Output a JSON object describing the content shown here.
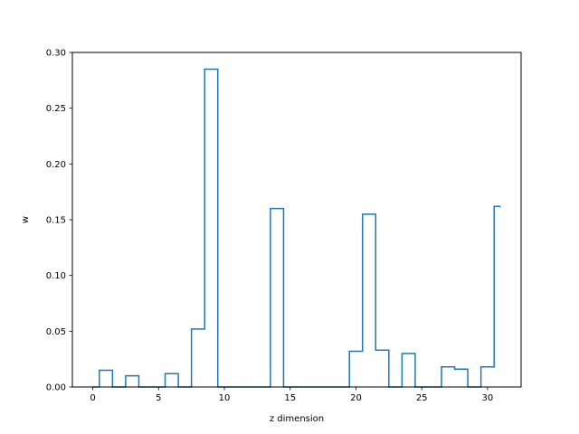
{
  "chart_data": {
    "type": "step",
    "title": "",
    "xlabel": "z dimension",
    "ylabel": "w",
    "xlim": [
      -1.55,
      32.55
    ],
    "ylim": [
      0,
      0.3
    ],
    "x_ticks": [
      0,
      5,
      10,
      15,
      20,
      25,
      30
    ],
    "y_ticks": [
      0.0,
      0.05,
      0.1,
      0.15,
      0.2,
      0.25,
      0.3
    ],
    "x_tick_labels": [
      "0",
      "5",
      "10",
      "15",
      "20",
      "25",
      "30"
    ],
    "y_tick_labels": [
      "0.00",
      "0.05",
      "0.10",
      "0.15",
      "0.20",
      "0.25",
      "0.30"
    ],
    "grid": false,
    "line_color": "#1f77b4",
    "x": [
      0,
      1,
      2,
      3,
      4,
      5,
      6,
      7,
      8,
      9,
      10,
      11,
      12,
      13,
      14,
      15,
      16,
      17,
      18,
      19,
      20,
      21,
      22,
      23,
      24,
      25,
      26,
      27,
      28,
      29,
      30,
      31
    ],
    "values": [
      0.0,
      0.015,
      0.0,
      0.01,
      0.0,
      0.0,
      0.012,
      0.0,
      0.052,
      0.285,
      0.0,
      0.0,
      0.0,
      0.0,
      0.16,
      0.0,
      0.0,
      0.0,
      0.0,
      0.0,
      0.032,
      0.155,
      0.033,
      0.0,
      0.03,
      0.0,
      0.0,
      0.018,
      0.016,
      0.0,
      0.018,
      0.162
    ]
  }
}
